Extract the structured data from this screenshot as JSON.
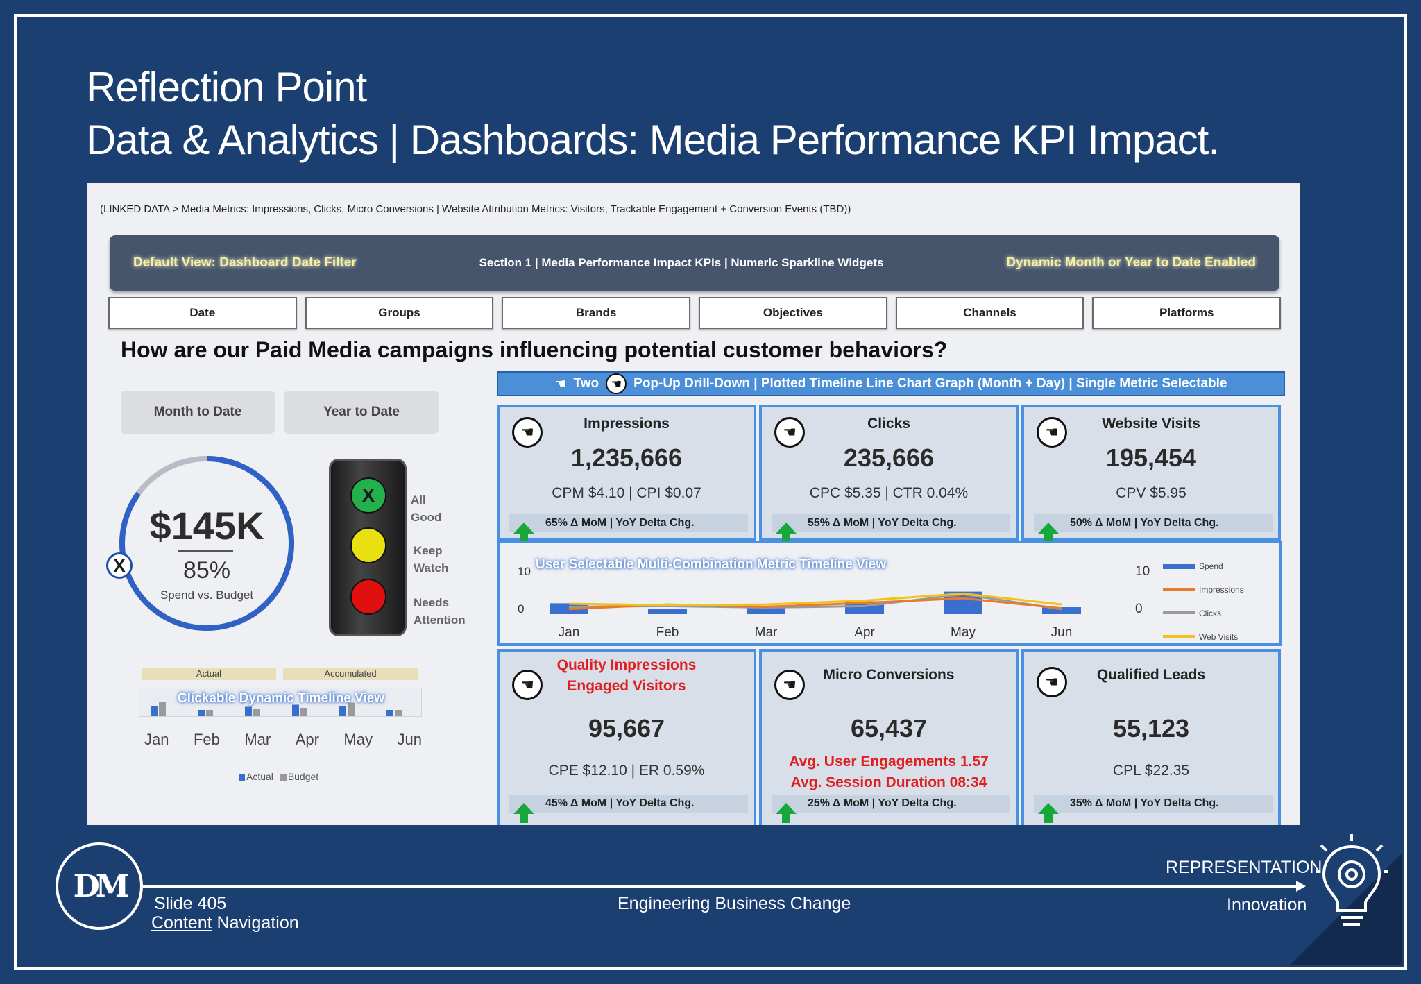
{
  "slide": {
    "title_line1": "Reflection Point",
    "title_line2": "Data & Analytics | Dashboards:  Media Performance KPI Impact."
  },
  "dashboard": {
    "linked_data": "(LINKED DATA > Media Metrics: Impressions, Clicks, Micro Conversions | Website Attribution Metrics: Visitors,  Trackable Engagement + Conversion Events (TBD))",
    "banner": {
      "left": "Default View: Dashboard Date Filter",
      "center": "Section 1 | Media Performance Impact KPIs | Numeric Sparkline Widgets",
      "right": "Dynamic Month or Year to Date Enabled"
    },
    "filters": [
      "Date",
      "Groups",
      "Brands",
      "Objectives",
      "Channels",
      "Platforms"
    ],
    "question": "How are our Paid Media campaigns influencing potential customer behaviors?",
    "drill_bar": {
      "prefix": "Two",
      "text": "Pop-Up Drill-Down | Plotted Timeline Line Chart Graph (Month + Day) | Single Metric Selectable"
    },
    "toggles": {
      "mtd": "Month to Date",
      "ytd": "Year to Date"
    },
    "gauge": {
      "value": "$145K",
      "percent": "85%",
      "fraction": 0.85,
      "label": "Spend vs. Budget",
      "marker": "X"
    },
    "traffic_light": {
      "green_mark": "X",
      "labels": {
        "good_1": "All",
        "good_2": "Good",
        "watch_1": "Keep",
        "watch_2": "Watch",
        "attn_1": "Needs",
        "attn_2": "Attention"
      },
      "colors": {
        "green": "#22b14c",
        "yellow": "#e8e010",
        "red": "#e01010"
      }
    },
    "mini_chart": {
      "head_actual": "Actual",
      "head_accumulated": "Accumulated",
      "glow_label": "Clickable Dynamic Timeline View",
      "months": [
        "Jan",
        "Feb",
        "Mar",
        "Apr",
        "May",
        "Jun"
      ],
      "legend_actual": "Actual",
      "legend_budget": "Budget",
      "actual": [
        0.5,
        0.3,
        0.45,
        0.55,
        0.5,
        0.3
      ],
      "budget": [
        0.7,
        0.3,
        0.35,
        0.4,
        0.65,
        0.3
      ]
    },
    "kpis": [
      {
        "name": "Impressions",
        "value": "1,235,666",
        "sub": "CPM $4.10 | CPI $0.07",
        "delta": "65% Δ MoM | YoY Delta Chg."
      },
      {
        "name": "Clicks",
        "value": "235,666",
        "sub": "CPC $5.35 | CTR 0.04%",
        "delta": "55% Δ MoM | YoY Delta Chg."
      },
      {
        "name": "Website Visits",
        "value": "195,454",
        "sub": "CPV $5.95",
        "delta": "50% Δ MoM | YoY Delta Chg."
      },
      {
        "name_line1": "Quality Impressions",
        "name_line2": "Engaged Visitors",
        "value": "95,667",
        "sub": "CPE $12.10 | ER 0.59%",
        "delta": "45% Δ MoM | YoY Delta Chg."
      },
      {
        "name": "Micro Conversions",
        "value": "65,437",
        "sub_line1": "Avg. User Engagements 1.57",
        "sub_line2": "Avg. Session Duration 08:34",
        "delta": "25% Δ MoM | YoY Delta Chg."
      },
      {
        "name": "Qualified Leads",
        "value": "55,123",
        "sub": "CPL $22.35",
        "delta": "35% Δ MoM | YoY Delta Chg."
      }
    ],
    "timeline": {
      "glow_label": "User Selectable Multi-Combination Metric Timeline View",
      "y_left": [
        "10",
        "0"
      ],
      "y_right": [
        "10",
        "0"
      ],
      "months": [
        "Jan",
        "Feb",
        "Mar",
        "Apr",
        "May",
        "Jun"
      ],
      "legend": [
        "Spend",
        "Impressions",
        "Clicks",
        "Web Visits"
      ],
      "colors": {
        "spend": "#3a6fd0",
        "impressions": "#e87a2a",
        "clicks": "#9a9a9a",
        "visits": "#f2c21a"
      },
      "spend": [
        3.5,
        2,
        2.5,
        4,
        6.5,
        2.5
      ],
      "impressions": [
        2,
        3.2,
        2.6,
        3.6,
        4.8,
        2.2
      ],
      "clicks": [
        2.6,
        2.8,
        2.4,
        2.8,
        5.8,
        2.0
      ],
      "visits": [
        3.4,
        3.0,
        3.2,
        4.2,
        6.0,
        3.2
      ]
    }
  },
  "footer": {
    "logo": "DM",
    "slide_no": "Slide 405",
    "nav_link": "Content",
    "nav_rest": "Navigation",
    "center": "Engineering Business Change",
    "representation": "REPRESENTATION",
    "innovation": "Innovation"
  }
}
